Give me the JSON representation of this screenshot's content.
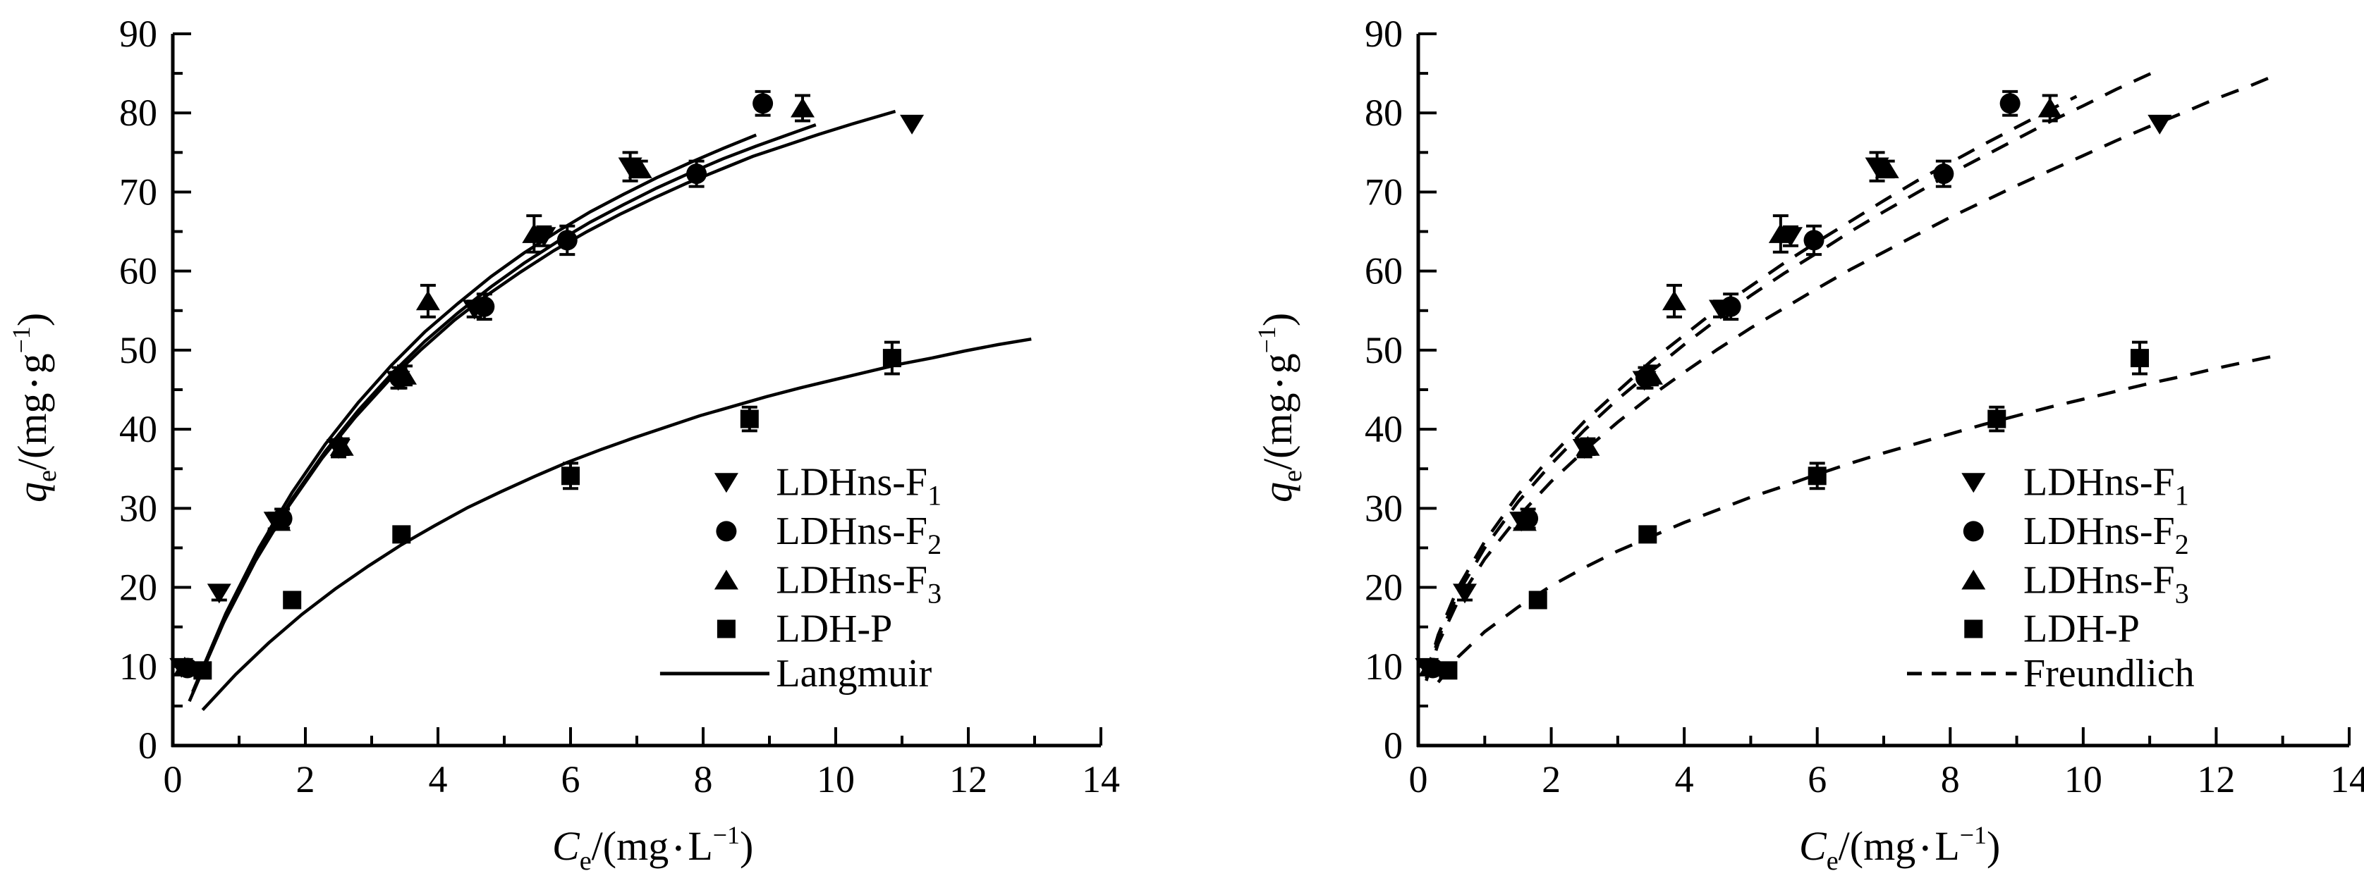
{
  "figure": {
    "description": "Two-panel adsorption isotherm figure",
    "background": "#ffffff",
    "ink_color": "#000000"
  },
  "chart_data": {
    "type": "scatter",
    "grid": false,
    "x_axis": {
      "min": 0,
      "max": 14,
      "major_step": 2,
      "minor_step": 1,
      "tick_labels": [
        "0",
        "2",
        "4",
        "6",
        "8",
        "10",
        "12",
        "14"
      ]
    },
    "y_axis": {
      "min": 0,
      "max": 90,
      "major_step": 10,
      "minor_step": 5,
      "tick_labels": [
        "0",
        "10",
        "20",
        "30",
        "40",
        "50",
        "60",
        "70",
        "80",
        "90"
      ]
    },
    "xlabel_parts": [
      {
        "t": "C",
        "s": "i"
      },
      {
        "t": "e",
        "s": "sub"
      },
      {
        "t": "/(mg",
        "s": "n"
      },
      {
        "t": " • ",
        "s": "dot"
      },
      {
        "t": "L",
        "s": "n"
      },
      {
        "t": "−1",
        "s": "sup"
      },
      {
        "t": ")",
        "s": "n"
      }
    ],
    "ylabel_parts": [
      {
        "t": "q",
        "s": "i"
      },
      {
        "t": "e",
        "s": "sub"
      },
      {
        "t": "/(mg",
        "s": "n"
      },
      {
        "t": " • ",
        "s": "dot"
      },
      {
        "t": "g",
        "s": "n"
      },
      {
        "t": "−1",
        "s": "sup"
      },
      {
        "t": ")",
        "s": "n"
      }
    ],
    "series": [
      {
        "name": "LDHns-F1",
        "marker": "triangle-down",
        "label": {
          "text": "LDHns-F",
          "sub": "1"
        },
        "points": [
          [
            0.13,
            9.9,
            0
          ],
          [
            0.7,
            19.3,
            0.9
          ],
          [
            1.55,
            28.4,
            1.0
          ],
          [
            2.5,
            37.6,
            1.1
          ],
          [
            3.4,
            46.2,
            1.0
          ],
          [
            4.55,
            55.2,
            1.0
          ],
          [
            5.6,
            64.4,
            1.2
          ],
          [
            6.9,
            73.2,
            1.8
          ],
          [
            11.15,
            78.6,
            0
          ]
        ]
      },
      {
        "name": "LDHns-F2",
        "marker": "circle",
        "label": {
          "text": "LDHns-F",
          "sub": "2"
        },
        "points": [
          [
            0.22,
            9.8,
            0
          ],
          [
            1.65,
            28.7,
            1.2
          ],
          [
            3.42,
            46.5,
            1.3
          ],
          [
            4.7,
            55.5,
            1.6
          ],
          [
            5.95,
            63.9,
            1.8
          ],
          [
            7.9,
            72.3,
            1.6
          ],
          [
            8.9,
            81.2,
            1.5
          ]
        ]
      },
      {
        "name": "LDHns-F3",
        "marker": "triangle-up",
        "label": {
          "text": "LDHns-F",
          "sub": "3"
        },
        "points": [
          [
            0.18,
            9.9,
            0
          ],
          [
            1.6,
            28.3,
            0.9
          ],
          [
            2.55,
            37.8,
            1.0
          ],
          [
            3.5,
            46.8,
            1.2
          ],
          [
            3.85,
            56.2,
            2.0
          ],
          [
            5.45,
            64.7,
            2.3
          ],
          [
            7.05,
            72.9,
            1.0
          ],
          [
            9.5,
            80.6,
            1.6
          ]
        ]
      },
      {
        "name": "LDH-P",
        "marker": "square",
        "label": {
          "text": "LDH-P",
          "sub": ""
        },
        "points": [
          [
            0.45,
            9.5,
            0.8
          ],
          [
            1.8,
            18.4,
            0.9
          ],
          [
            3.45,
            26.7,
            0.9
          ],
          [
            6.0,
            34.1,
            1.6
          ],
          [
            8.7,
            41.3,
            1.5
          ],
          [
            10.85,
            49.0,
            2.0
          ]
        ]
      }
    ],
    "panels": [
      {
        "id": "langmuir-panel",
        "fit_label": "Langmuir",
        "line_style": "solid",
        "curves": [
          {
            "series": "LDHns-F2",
            "points": [
              [
                0.25,
                5.6
              ],
              [
                0.75,
                15.3
              ],
              [
                1.25,
                23.4
              ],
              [
                1.75,
                30.3
              ],
              [
                2.25,
                36.3
              ],
              [
                2.75,
                41.5
              ],
              [
                3.25,
                46.1
              ],
              [
                3.75,
                50.1
              ],
              [
                4.25,
                53.8
              ],
              [
                4.75,
                57.0
              ],
              [
                5.25,
                59.9
              ],
              [
                5.75,
                62.6
              ],
              [
                6.25,
                65.0
              ],
              [
                6.75,
                67.2
              ],
              [
                7.25,
                69.2
              ],
              [
                7.75,
                71.1
              ],
              [
                8.25,
                72.8
              ],
              [
                8.75,
                74.5
              ],
              [
                9.25,
                75.9
              ],
              [
                9.75,
                77.3
              ],
              [
                10.25,
                78.6
              ],
              [
                10.9,
                80.2
              ]
            ]
          },
          {
            "series": "LDHns-F3",
            "points": [
              [
                0.3,
                6.6
              ],
              [
                0.8,
                16.2
              ],
              [
                1.3,
                24.3
              ],
              [
                1.8,
                31.2
              ],
              [
                2.3,
                37.2
              ],
              [
                2.8,
                42.4
              ],
              [
                3.3,
                47.0
              ],
              [
                3.8,
                51.1
              ],
              [
                4.3,
                54.7
              ],
              [
                4.8,
                58.0
              ],
              [
                5.3,
                61.0
              ],
              [
                5.8,
                63.7
              ],
              [
                6.3,
                66.2
              ],
              [
                6.8,
                68.4
              ],
              [
                7.3,
                70.5
              ],
              [
                7.8,
                72.4
              ],
              [
                8.3,
                74.2
              ],
              [
                8.8,
                75.8
              ],
              [
                9.3,
                77.3
              ],
              [
                9.7,
                78.5
              ]
            ]
          },
          {
            "series": "LDHns-F1",
            "points": [
              [
                0.3,
                6.8
              ],
              [
                0.8,
                16.7
              ],
              [
                1.3,
                25.0
              ],
              [
                1.8,
                32.0
              ],
              [
                2.3,
                38.1
              ],
              [
                2.8,
                43.4
              ],
              [
                3.3,
                48.1
              ],
              [
                3.8,
                52.3
              ],
              [
                4.3,
                55.9
              ],
              [
                4.8,
                59.3
              ],
              [
                5.3,
                62.3
              ],
              [
                5.8,
                65.0
              ],
              [
                6.3,
                67.5
              ],
              [
                6.8,
                69.7
              ],
              [
                7.3,
                71.8
              ],
              [
                7.8,
                73.7
              ],
              [
                8.3,
                75.5
              ],
              [
                8.8,
                77.2
              ]
            ]
          },
          {
            "series": "LDH-P",
            "points": [
              [
                0.45,
                4.5
              ],
              [
                0.95,
                9.0
              ],
              [
                1.45,
                13.0
              ],
              [
                1.95,
                16.6
              ],
              [
                2.45,
                19.8
              ],
              [
                2.95,
                22.7
              ],
              [
                3.45,
                25.4
              ],
              [
                3.95,
                27.8
              ],
              [
                4.45,
                30.1
              ],
              [
                4.95,
                32.1
              ],
              [
                5.45,
                34.0
              ],
              [
                5.95,
                35.8
              ],
              [
                6.45,
                37.4
              ],
              [
                6.95,
                38.9
              ],
              [
                7.45,
                40.3
              ],
              [
                7.95,
                41.7
              ],
              [
                8.45,
                42.9
              ],
              [
                8.95,
                44.1
              ],
              [
                9.45,
                45.2
              ],
              [
                9.95,
                46.2
              ],
              [
                10.45,
                47.2
              ],
              [
                10.95,
                48.2
              ],
              [
                11.45,
                49.0
              ],
              [
                11.95,
                49.9
              ],
              [
                12.45,
                50.7
              ],
              [
                12.95,
                51.4
              ]
            ]
          }
        ]
      },
      {
        "id": "freundlich-panel",
        "fit_label": "Freundlich",
        "line_style": "dashed",
        "curves": [
          {
            "series": "LDHns-F2",
            "points": [
              [
                0.12,
                8.5
              ],
              [
                0.3,
                13.5
              ],
              [
                0.6,
                19.3
              ],
              [
                1,
                25.0
              ],
              [
                1.5,
                30.8
              ],
              [
                2,
                35.6
              ],
              [
                2.5,
                39.9
              ],
              [
                3,
                43.8
              ],
              [
                3.5,
                47.3
              ],
              [
                4,
                50.7
              ],
              [
                4.5,
                53.9
              ],
              [
                5,
                56.9
              ],
              [
                5.5,
                59.7
              ],
              [
                6,
                62.3
              ],
              [
                6.5,
                65.0
              ],
              [
                7,
                67.5
              ],
              [
                7.5,
                69.9
              ],
              [
                8,
                72.3
              ],
              [
                8.5,
                74.5
              ],
              [
                9,
                76.7
              ],
              [
                9.5,
                78.9
              ],
              [
                10,
                80.9
              ],
              [
                10.5,
                83.0
              ],
              [
                11.1,
                85.3
              ]
            ]
          },
          {
            "series": "LDHns-F3",
            "points": [
              [
                0.12,
                8.9
              ],
              [
                0.3,
                14.0
              ],
              [
                0.6,
                20.0
              ],
              [
                1,
                25.8
              ],
              [
                1.5,
                31.7
              ],
              [
                2,
                36.6
              ],
              [
                2.5,
                41.0
              ],
              [
                3,
                44.8
              ],
              [
                3.5,
                48.6
              ],
              [
                4,
                51.9
              ],
              [
                4.5,
                55.2
              ],
              [
                5,
                58.1
              ],
              [
                5.5,
                61.0
              ],
              [
                6,
                63.7
              ],
              [
                6.5,
                66.3
              ],
              [
                7,
                68.9
              ],
              [
                7.5,
                71.4
              ],
              [
                8,
                73.7
              ],
              [
                8.5,
                76.0
              ],
              [
                9,
                78.2
              ],
              [
                9.5,
                80.4
              ],
              [
                9.9,
                82.1
              ]
            ]
          },
          {
            "series": "LDHns-F1",
            "points": [
              [
                0.12,
                8.2
              ],
              [
                0.3,
                12.9
              ],
              [
                0.6,
                18.3
              ],
              [
                1,
                23.6
              ],
              [
                1.5,
                28.9
              ],
              [
                2,
                33.4
              ],
              [
                2.5,
                37.3
              ],
              [
                3,
                40.9
              ],
              [
                3.5,
                44.2
              ],
              [
                4,
                47.2
              ],
              [
                4.5,
                50.1
              ],
              [
                5,
                52.8
              ],
              [
                5.5,
                55.3
              ],
              [
                6,
                57.8
              ],
              [
                6.5,
                60.2
              ],
              [
                7,
                62.4
              ],
              [
                7.5,
                64.6
              ],
              [
                8,
                66.8
              ],
              [
                8.5,
                68.8
              ],
              [
                9,
                70.8
              ],
              [
                9.5,
                72.7
              ],
              [
                10,
                74.6
              ],
              [
                10.5,
                76.5
              ],
              [
                11,
                78.3
              ],
              [
                11.5,
                80.0
              ],
              [
                12,
                81.8
              ],
              [
                12.5,
                83.4
              ],
              [
                12.9,
                84.8
              ]
            ]
          },
          {
            "series": "LDH-P",
            "points": [
              [
                0.3,
                8.0
              ],
              [
                0.6,
                11.2
              ],
              [
                1,
                14.4
              ],
              [
                1.5,
                17.5
              ],
              [
                2,
                20.2
              ],
              [
                2.5,
                22.5
              ],
              [
                3,
                24.6
              ],
              [
                3.5,
                26.4
              ],
              [
                4,
                28.2
              ],
              [
                4.5,
                29.8
              ],
              [
                5,
                31.4
              ],
              [
                5.5,
                32.8
              ],
              [
                6,
                34.3
              ],
              [
                6.5,
                35.7
              ],
              [
                7,
                37.0
              ],
              [
                7.5,
                38.2
              ],
              [
                8,
                39.4
              ],
              [
                8.5,
                40.6
              ],
              [
                9,
                41.7
              ],
              [
                9.5,
                42.8
              ],
              [
                10,
                43.8
              ],
              [
                10.5,
                44.8
              ],
              [
                11,
                45.8
              ],
              [
                11.5,
                46.7
              ],
              [
                12,
                47.7
              ],
              [
                12.5,
                48.6
              ],
              [
                12.9,
                49.3
              ]
            ]
          }
        ]
      }
    ],
    "legend": {
      "position": "inside-lower-right",
      "entries": [
        "LDHns-F1",
        "LDHns-F2",
        "LDHns-F3",
        "LDH-P"
      ],
      "fit_labels": [
        "Langmuir",
        "Freundlich"
      ]
    },
    "ink_color": "#000000",
    "background": "#ffffff"
  }
}
